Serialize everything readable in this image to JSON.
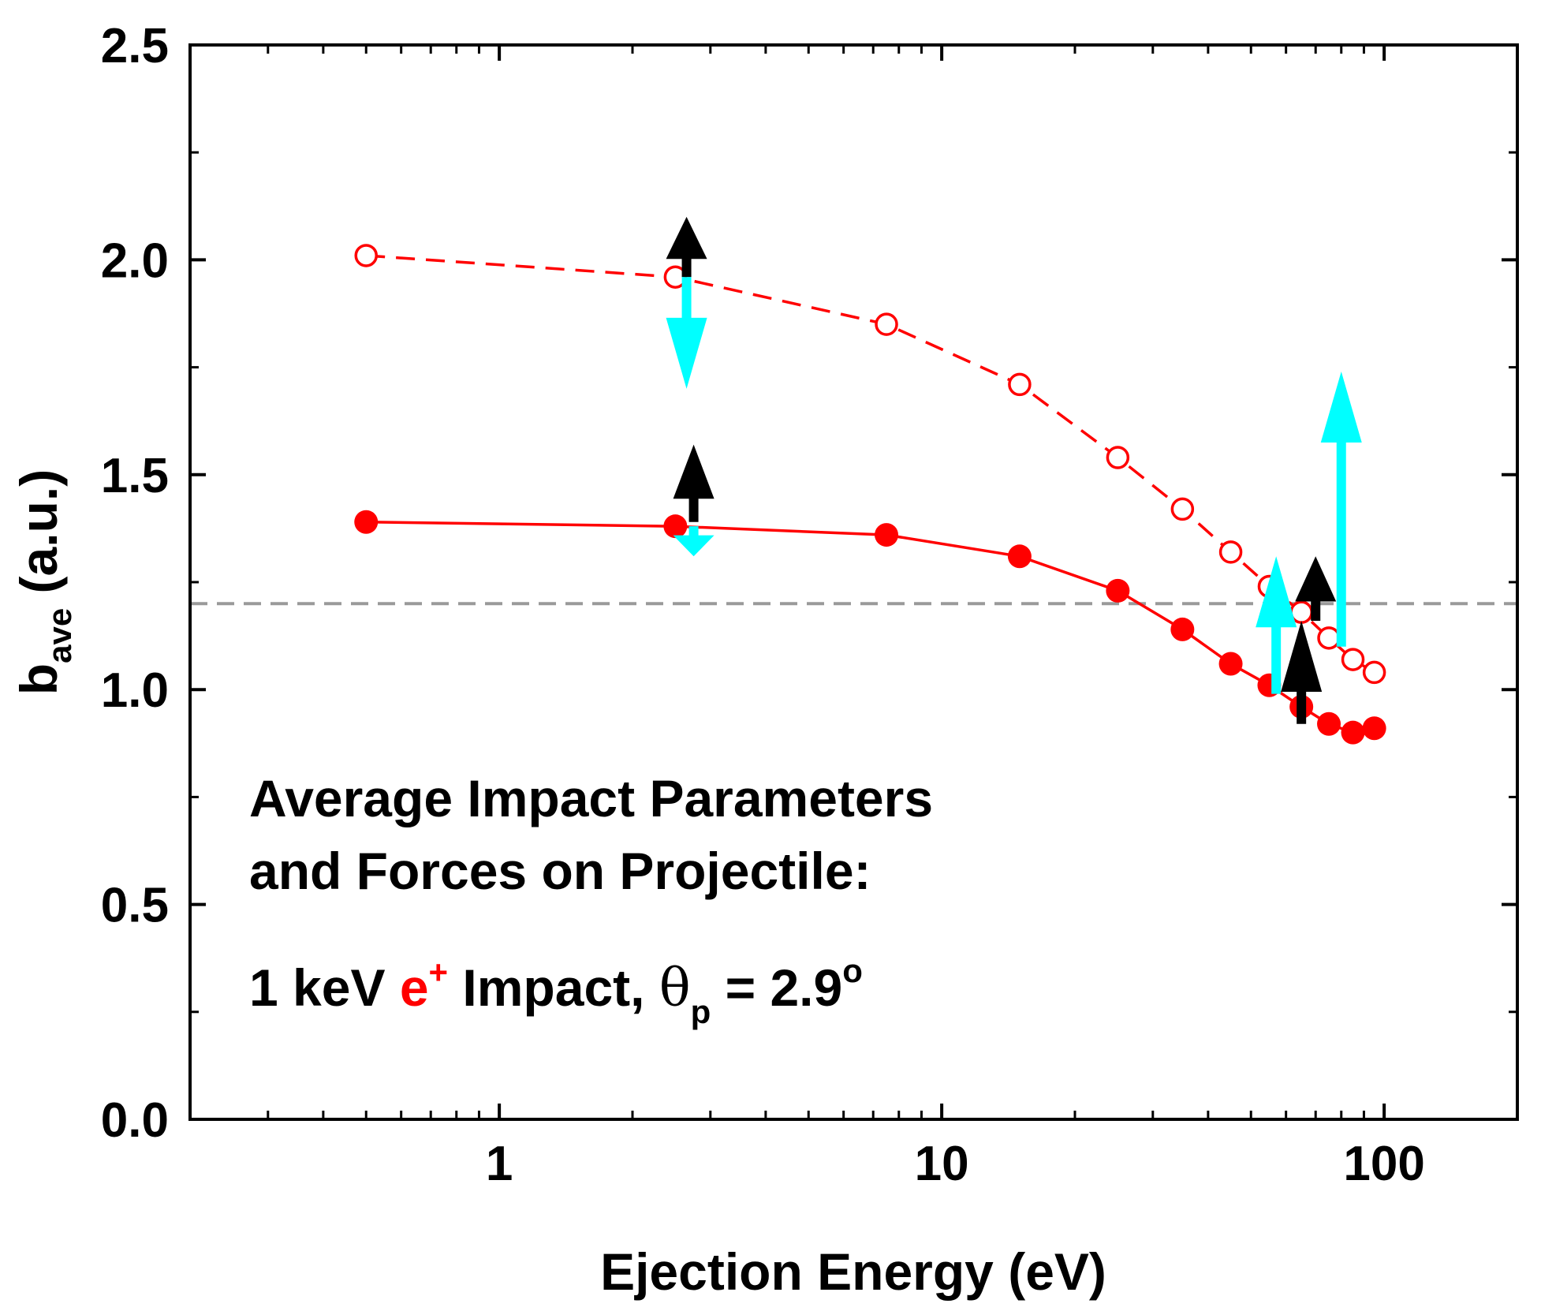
{
  "chart_data": {
    "type": "line",
    "title": "",
    "xlabel": "Ejection Energy (eV)",
    "ylabel_main": "b",
    "ylabel_sub": "ave",
    "ylabel_unit": " (a.u.)",
    "xscale": "log",
    "xlim": [
      0.2,
      200
    ],
    "ylim": [
      0,
      2.5
    ],
    "x_ticks": [
      1,
      10,
      100
    ],
    "x_tick_labels": [
      "1",
      "10",
      "100"
    ],
    "y_ticks": [
      0,
      0.5,
      1,
      1.5,
      2,
      2.5
    ],
    "y_tick_labels": [
      "0.0",
      "0.5",
      "1.0",
      "1.5",
      "2.0",
      "2.5"
    ],
    "reference_line": {
      "y": 1.2,
      "style": "dashed",
      "color": "#9a9a9a"
    },
    "series": [
      {
        "name": "open-circles-dashed",
        "marker": "open-circle",
        "line": "dashed",
        "color": "#ff0000",
        "x": [
          0.5,
          2.5,
          7.5,
          15,
          25,
          35,
          45,
          55,
          65,
          75,
          85,
          95
        ],
        "y": [
          2.01,
          1.96,
          1.85,
          1.71,
          1.54,
          1.42,
          1.32,
          1.24,
          1.18,
          1.12,
          1.07,
          1.04
        ]
      },
      {
        "name": "filled-circles-solid",
        "marker": "filled-circle",
        "line": "solid",
        "color": "#ff0000",
        "x": [
          0.5,
          2.5,
          7.5,
          15,
          25,
          35,
          45,
          55,
          65,
          75,
          85,
          95
        ],
        "y": [
          1.39,
          1.38,
          1.36,
          1.31,
          1.23,
          1.14,
          1.06,
          1.01,
          0.96,
          0.92,
          0.9,
          0.91
        ]
      }
    ],
    "arrows": [
      {
        "name": "black-arrow-upper-left",
        "color": "#000000",
        "x": 2.65,
        "y_from": 1.96,
        "y_to": 2.1
      },
      {
        "name": "cyan-arrow-upper-left",
        "color": "#00ffff",
        "x": 2.65,
        "y_from": 1.96,
        "y_to": 1.7
      },
      {
        "name": "black-arrow-lower-left",
        "color": "#000000",
        "x": 2.75,
        "y_from": 1.39,
        "y_to": 1.57
      },
      {
        "name": "cyan-arrow-lower-left",
        "color": "#00ffff",
        "x": 2.75,
        "y_from": 1.38,
        "y_to": 1.31
      },
      {
        "name": "cyan-arrow-right-small",
        "color": "#00ffff",
        "x": 57,
        "y_from": 0.99,
        "y_to": 1.31
      },
      {
        "name": "black-arrow-right-lower",
        "color": "#000000",
        "x": 65,
        "y_from": 0.92,
        "y_to": 1.16
      },
      {
        "name": "black-arrow-right-upper",
        "color": "#000000",
        "x": 70,
        "y_from": 1.16,
        "y_to": 1.31
      },
      {
        "name": "cyan-arrow-right-large",
        "color": "#00ffff",
        "x": 80,
        "y_from": 1.1,
        "y_to": 1.74
      }
    ],
    "annotation": {
      "line1": "Average Impact Parameters",
      "line2": "and Forces on Projectile:",
      "line3_a": "1 keV ",
      "line3_e": "e",
      "line3_plus": "+",
      "line3_b": " Impact, ",
      "line3_theta": "θ",
      "line3_p": "p",
      "line3_c": " = 2.9",
      "line3_deg": "o"
    }
  }
}
